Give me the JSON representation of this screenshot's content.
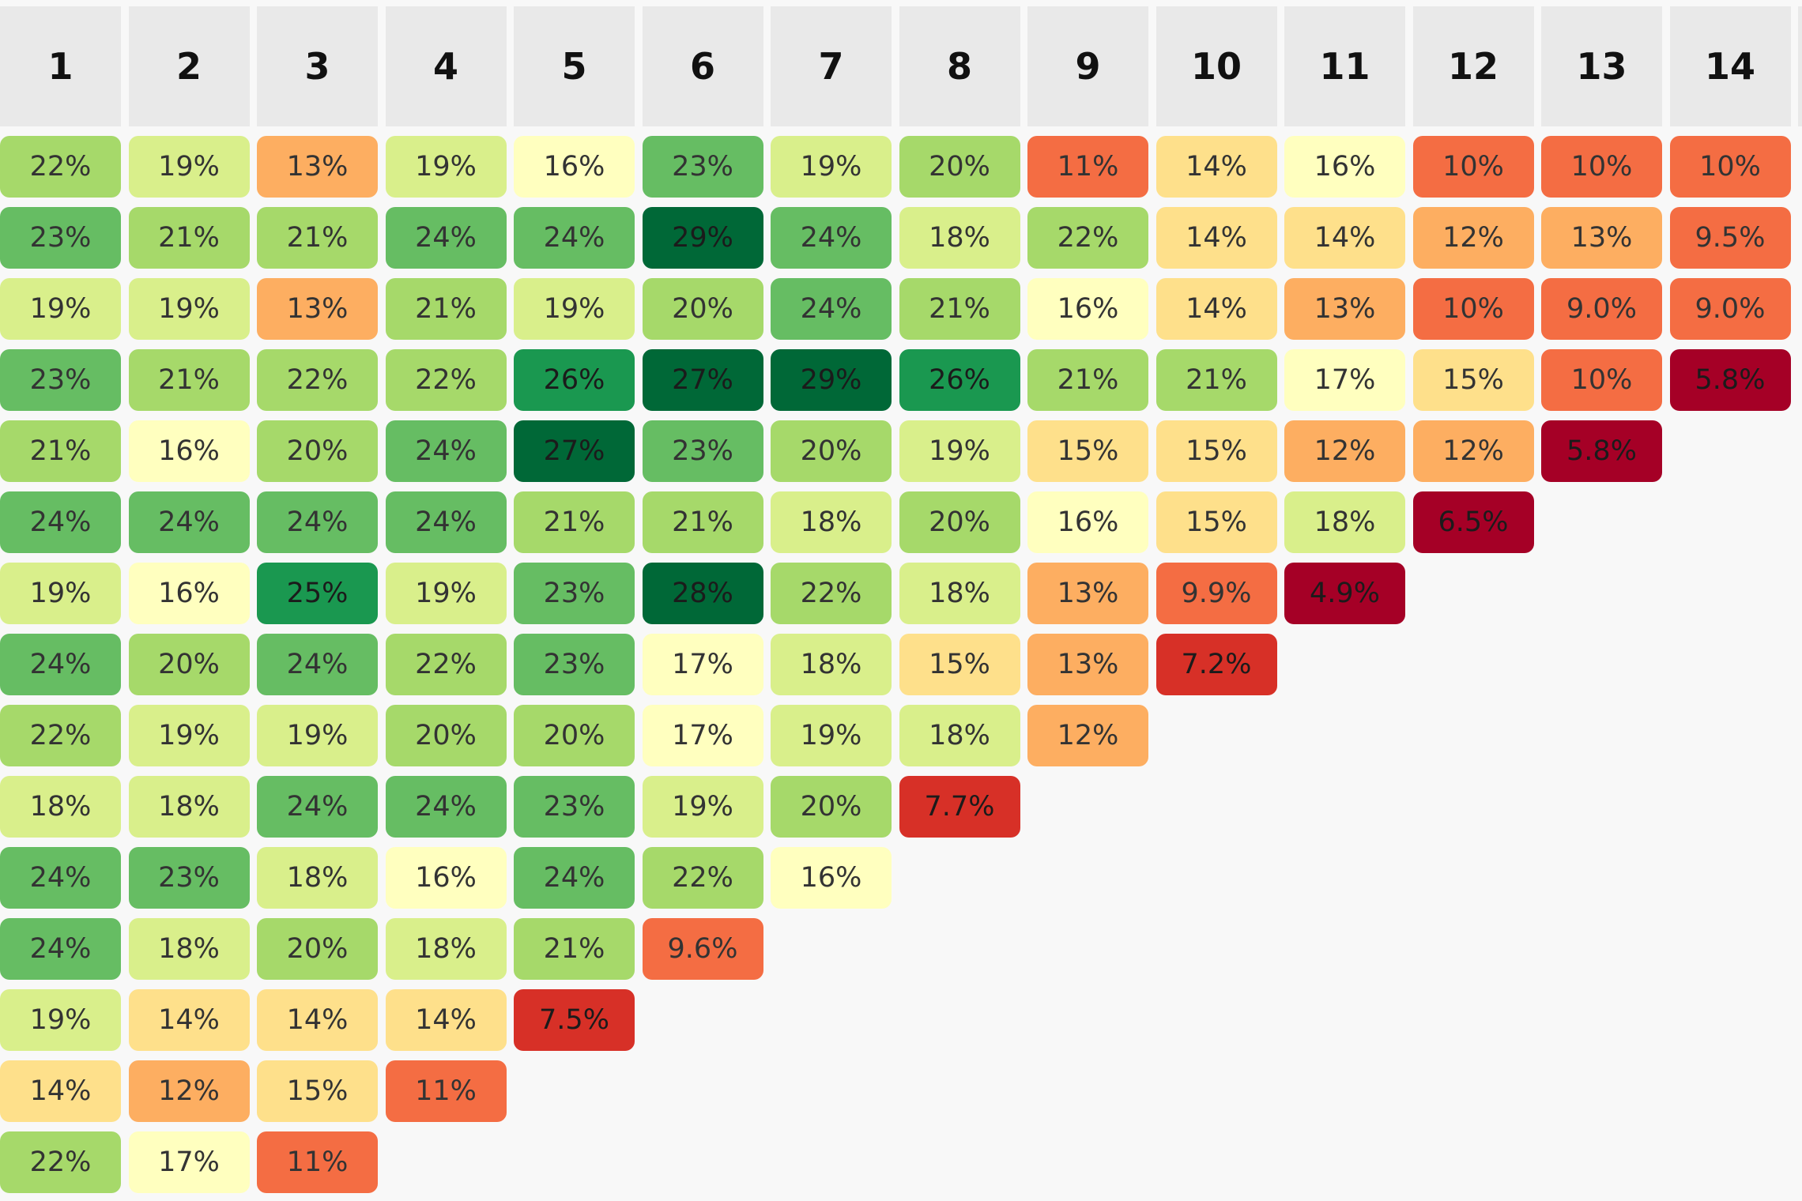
{
  "chart_data": {
    "type": "heatmap",
    "columns": [
      "1",
      "2",
      "3",
      "4",
      "5",
      "6",
      "7",
      "8",
      "9",
      "10",
      "11",
      "12",
      "13",
      "14"
    ],
    "rows": [
      [
        "22%",
        "19%",
        "13%",
        "19%",
        "16%",
        "23%",
        "19%",
        "20%",
        "11%",
        "14%",
        "16%",
        "10%",
        "10%",
        "10%"
      ],
      [
        "23%",
        "21%",
        "21%",
        "24%",
        "24%",
        "29%",
        "24%",
        "18%",
        "22%",
        "14%",
        "14%",
        "12%",
        "13%",
        "9.5%"
      ],
      [
        "19%",
        "19%",
        "13%",
        "21%",
        "19%",
        "20%",
        "24%",
        "21%",
        "16%",
        "14%",
        "13%",
        "10%",
        "9.0%",
        "9.0%"
      ],
      [
        "23%",
        "21%",
        "22%",
        "22%",
        "26%",
        "27%",
        "29%",
        "26%",
        "21%",
        "21%",
        "17%",
        "15%",
        "10%",
        "5.8%"
      ],
      [
        "21%",
        "16%",
        "20%",
        "24%",
        "27%",
        "23%",
        "20%",
        "19%",
        "15%",
        "15%",
        "12%",
        "12%",
        "5.8%"
      ],
      [
        "24%",
        "24%",
        "24%",
        "24%",
        "21%",
        "21%",
        "18%",
        "20%",
        "16%",
        "15%",
        "18%",
        "6.5%"
      ],
      [
        "19%",
        "16%",
        "25%",
        "19%",
        "23%",
        "28%",
        "22%",
        "18%",
        "13%",
        "9.9%",
        "4.9%"
      ],
      [
        "24%",
        "20%",
        "24%",
        "22%",
        "23%",
        "17%",
        "18%",
        "15%",
        "13%",
        "7.2%"
      ],
      [
        "22%",
        "19%",
        "19%",
        "20%",
        "20%",
        "17%",
        "19%",
        "18%",
        "12%"
      ],
      [
        "18%",
        "18%",
        "24%",
        "24%",
        "23%",
        "19%",
        "20%",
        "7.7%"
      ],
      [
        "24%",
        "23%",
        "18%",
        "16%",
        "24%",
        "22%",
        "16%"
      ],
      [
        "24%",
        "18%",
        "20%",
        "18%",
        "21%",
        "9.6%"
      ],
      [
        "19%",
        "14%",
        "14%",
        "14%",
        "7.5%"
      ],
      [
        "14%",
        "12%",
        "15%",
        "11%"
      ],
      [
        "22%",
        "17%",
        "11%"
      ]
    ],
    "colorscale": "red-yellow-green",
    "colors": {
      "background": "#f8f8f8",
      "header_bg": "#e9e9e9",
      "stops": [
        "#a50026",
        "#d73027",
        "#f46d43",
        "#fdae61",
        "#fee08b",
        "#ffffbf",
        "#d9ef8b",
        "#a6d96a",
        "#66bd63",
        "#1a9850",
        "#006837"
      ]
    }
  }
}
